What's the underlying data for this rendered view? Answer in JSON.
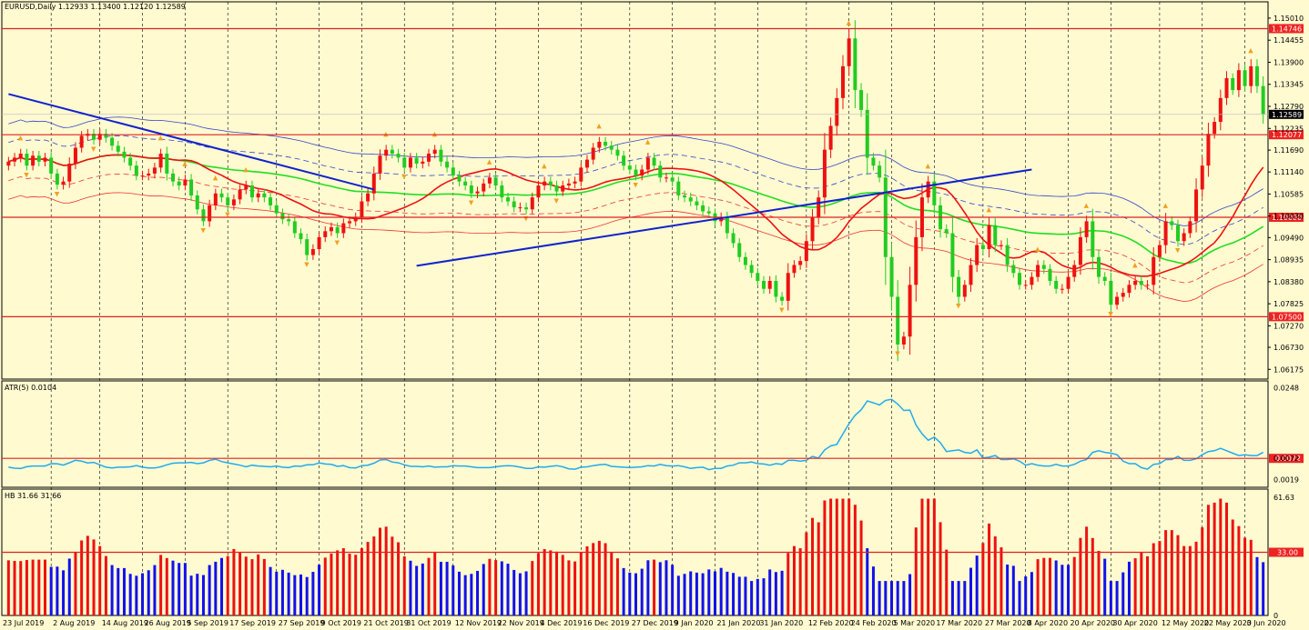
{
  "chart_data": [
    {
      "type": "candlestick",
      "title": "EURUSD,Daily  1.12933 1.13400 1.12120 1.12589",
      "symbol": "EURUSD",
      "timeframe": "Daily",
      "ohlc_current": {
        "open": 1.12933,
        "high": 1.134,
        "low": 1.1212,
        "close": 1.12589
      },
      "current_price_label": "1.12589",
      "ylim": [
        1.0593,
        1.1542
      ],
      "y_ticks": [
        "1.15010",
        "1.14455",
        "1.13900",
        "1.13345",
        "1.12790",
        "1.12235",
        "1.11690",
        "1.11140",
        "1.10585",
        "1.10030",
        "1.09490",
        "1.08935",
        "1.08380",
        "1.07825",
        "1.07270",
        "1.06730",
        "1.06175"
      ],
      "horizontal_levels": [
        {
          "value": 1.14746,
          "label": "1.14746"
        },
        {
          "value": 1.12077,
          "label": "1.12077"
        },
        {
          "value": 1.1,
          "label": "1.10000"
        },
        {
          "value": 1.075,
          "label": "1.07500"
        }
      ],
      "x_labels": [
        "23 Jul 2019",
        "2 Aug 2019",
        "14 Aug 2019",
        "26 Aug 2019",
        "5 Sep 2019",
        "17 Sep 2019",
        "27 Sep 2019",
        "9 Oct 2019",
        "21 Oct 2019",
        "31 Oct 2019",
        "12 Nov 2019",
        "22 Nov 2019",
        "4 Dec 2019",
        "16 Dec 2019",
        "27 Dec 2019",
        "9 Jan 2020",
        "21 Jan 2020",
        "31 Jan 2020",
        "12 Feb 2020",
        "24 Feb 2020",
        "5 Mar 2020",
        "17 Mar 2020",
        "27 Mar 2020",
        "8 Apr 2020",
        "20 Apr 2020",
        "30 Apr 2020",
        "12 May 2020",
        "22 May 2020",
        "3 Jun 2020"
      ],
      "close_series": [
        1.114,
        1.115,
        1.116,
        1.113,
        1.1155,
        1.114,
        1.115,
        1.111,
        1.1082,
        1.109,
        1.1135,
        1.1175,
        1.1205,
        1.121,
        1.1195,
        1.121,
        1.12,
        1.118,
        1.1165,
        1.115,
        1.113,
        1.1105,
        1.1105,
        1.111,
        1.1125,
        1.116,
        1.111,
        1.109,
        1.108,
        1.1095,
        1.1055,
        1.102,
        1.099,
        1.103,
        1.106,
        1.105,
        1.103,
        1.1045,
        1.107,
        1.108,
        1.105,
        1.106,
        1.105,
        1.103,
        1.101,
        1.0995,
        1.099,
        1.096,
        1.0945,
        1.0905,
        1.092,
        1.095,
        1.0965,
        1.0975,
        1.096,
        1.0985,
        1.099,
        1.1,
        1.104,
        1.106,
        1.111,
        1.1155,
        1.117,
        1.116,
        1.115,
        1.1125,
        1.115,
        1.1135,
        1.114,
        1.116,
        1.117,
        1.114,
        1.1125,
        1.1105,
        1.109,
        1.108,
        1.106,
        1.1065,
        1.1085,
        1.11,
        1.108,
        1.105,
        1.104,
        1.1025,
        1.1025,
        1.102,
        1.105,
        1.108,
        1.109,
        1.108,
        1.1065,
        1.108,
        1.1085,
        1.109,
        1.1125,
        1.1145,
        1.1175,
        1.119,
        1.118,
        1.117,
        1.1155,
        1.113,
        1.112,
        1.1105,
        1.112,
        1.115,
        1.113,
        1.11,
        1.11,
        1.109,
        1.1055,
        1.105,
        1.104,
        1.103,
        1.1015,
        1.101,
        1.099,
        1.1,
        1.096,
        1.0935,
        1.09,
        1.088,
        1.086,
        1.084,
        1.082,
        1.084,
        1.08,
        1.079,
        1.086,
        1.088,
        1.089,
        1.094,
        1.1,
        1.105,
        1.117,
        1.123,
        1.13,
        1.138,
        1.145,
        1.132,
        1.127,
        1.115,
        1.113,
        1.11,
        1.09,
        1.08,
        1.068,
        1.07,
        1.083,
        1.095,
        1.105,
        1.109,
        1.103,
        1.097,
        1.096,
        1.085,
        1.08,
        1.083,
        1.088,
        1.093,
        1.092,
        1.098,
        1.093,
        1.093,
        1.088,
        1.086,
        1.083,
        1.083,
        1.085,
        1.088,
        1.087,
        1.084,
        1.082,
        1.082,
        1.085,
        1.088,
        1.095,
        1.099,
        1.09,
        1.085,
        1.084,
        1.078,
        1.08,
        1.081,
        1.083,
        1.084,
        1.083,
        1.083,
        1.09,
        1.093,
        1.099,
        1.098,
        1.094,
        1.096,
        1.099,
        1.107,
        1.113,
        1.121,
        1.124,
        1.13,
        1.135,
        1.132,
        1.137,
        1.133,
        1.138,
        1.133,
        1.126
      ]
    },
    {
      "type": "line",
      "title": "ATR(5) 0.0104",
      "ylim": [
        0.0,
        0.0265
      ],
      "y_ticks": [
        "0.0248",
        "0.0072",
        "0.0019"
      ],
      "level": {
        "value": 0.0072,
        "label": "0.0072"
      }
    },
    {
      "type": "bar",
      "title": "HB 31.66 31.66",
      "ylim": [
        0,
        66
      ],
      "y_ticks": [
        "61.63",
        "0"
      ],
      "level": {
        "value": 33.0,
        "label": "33.00"
      }
    }
  ]
}
